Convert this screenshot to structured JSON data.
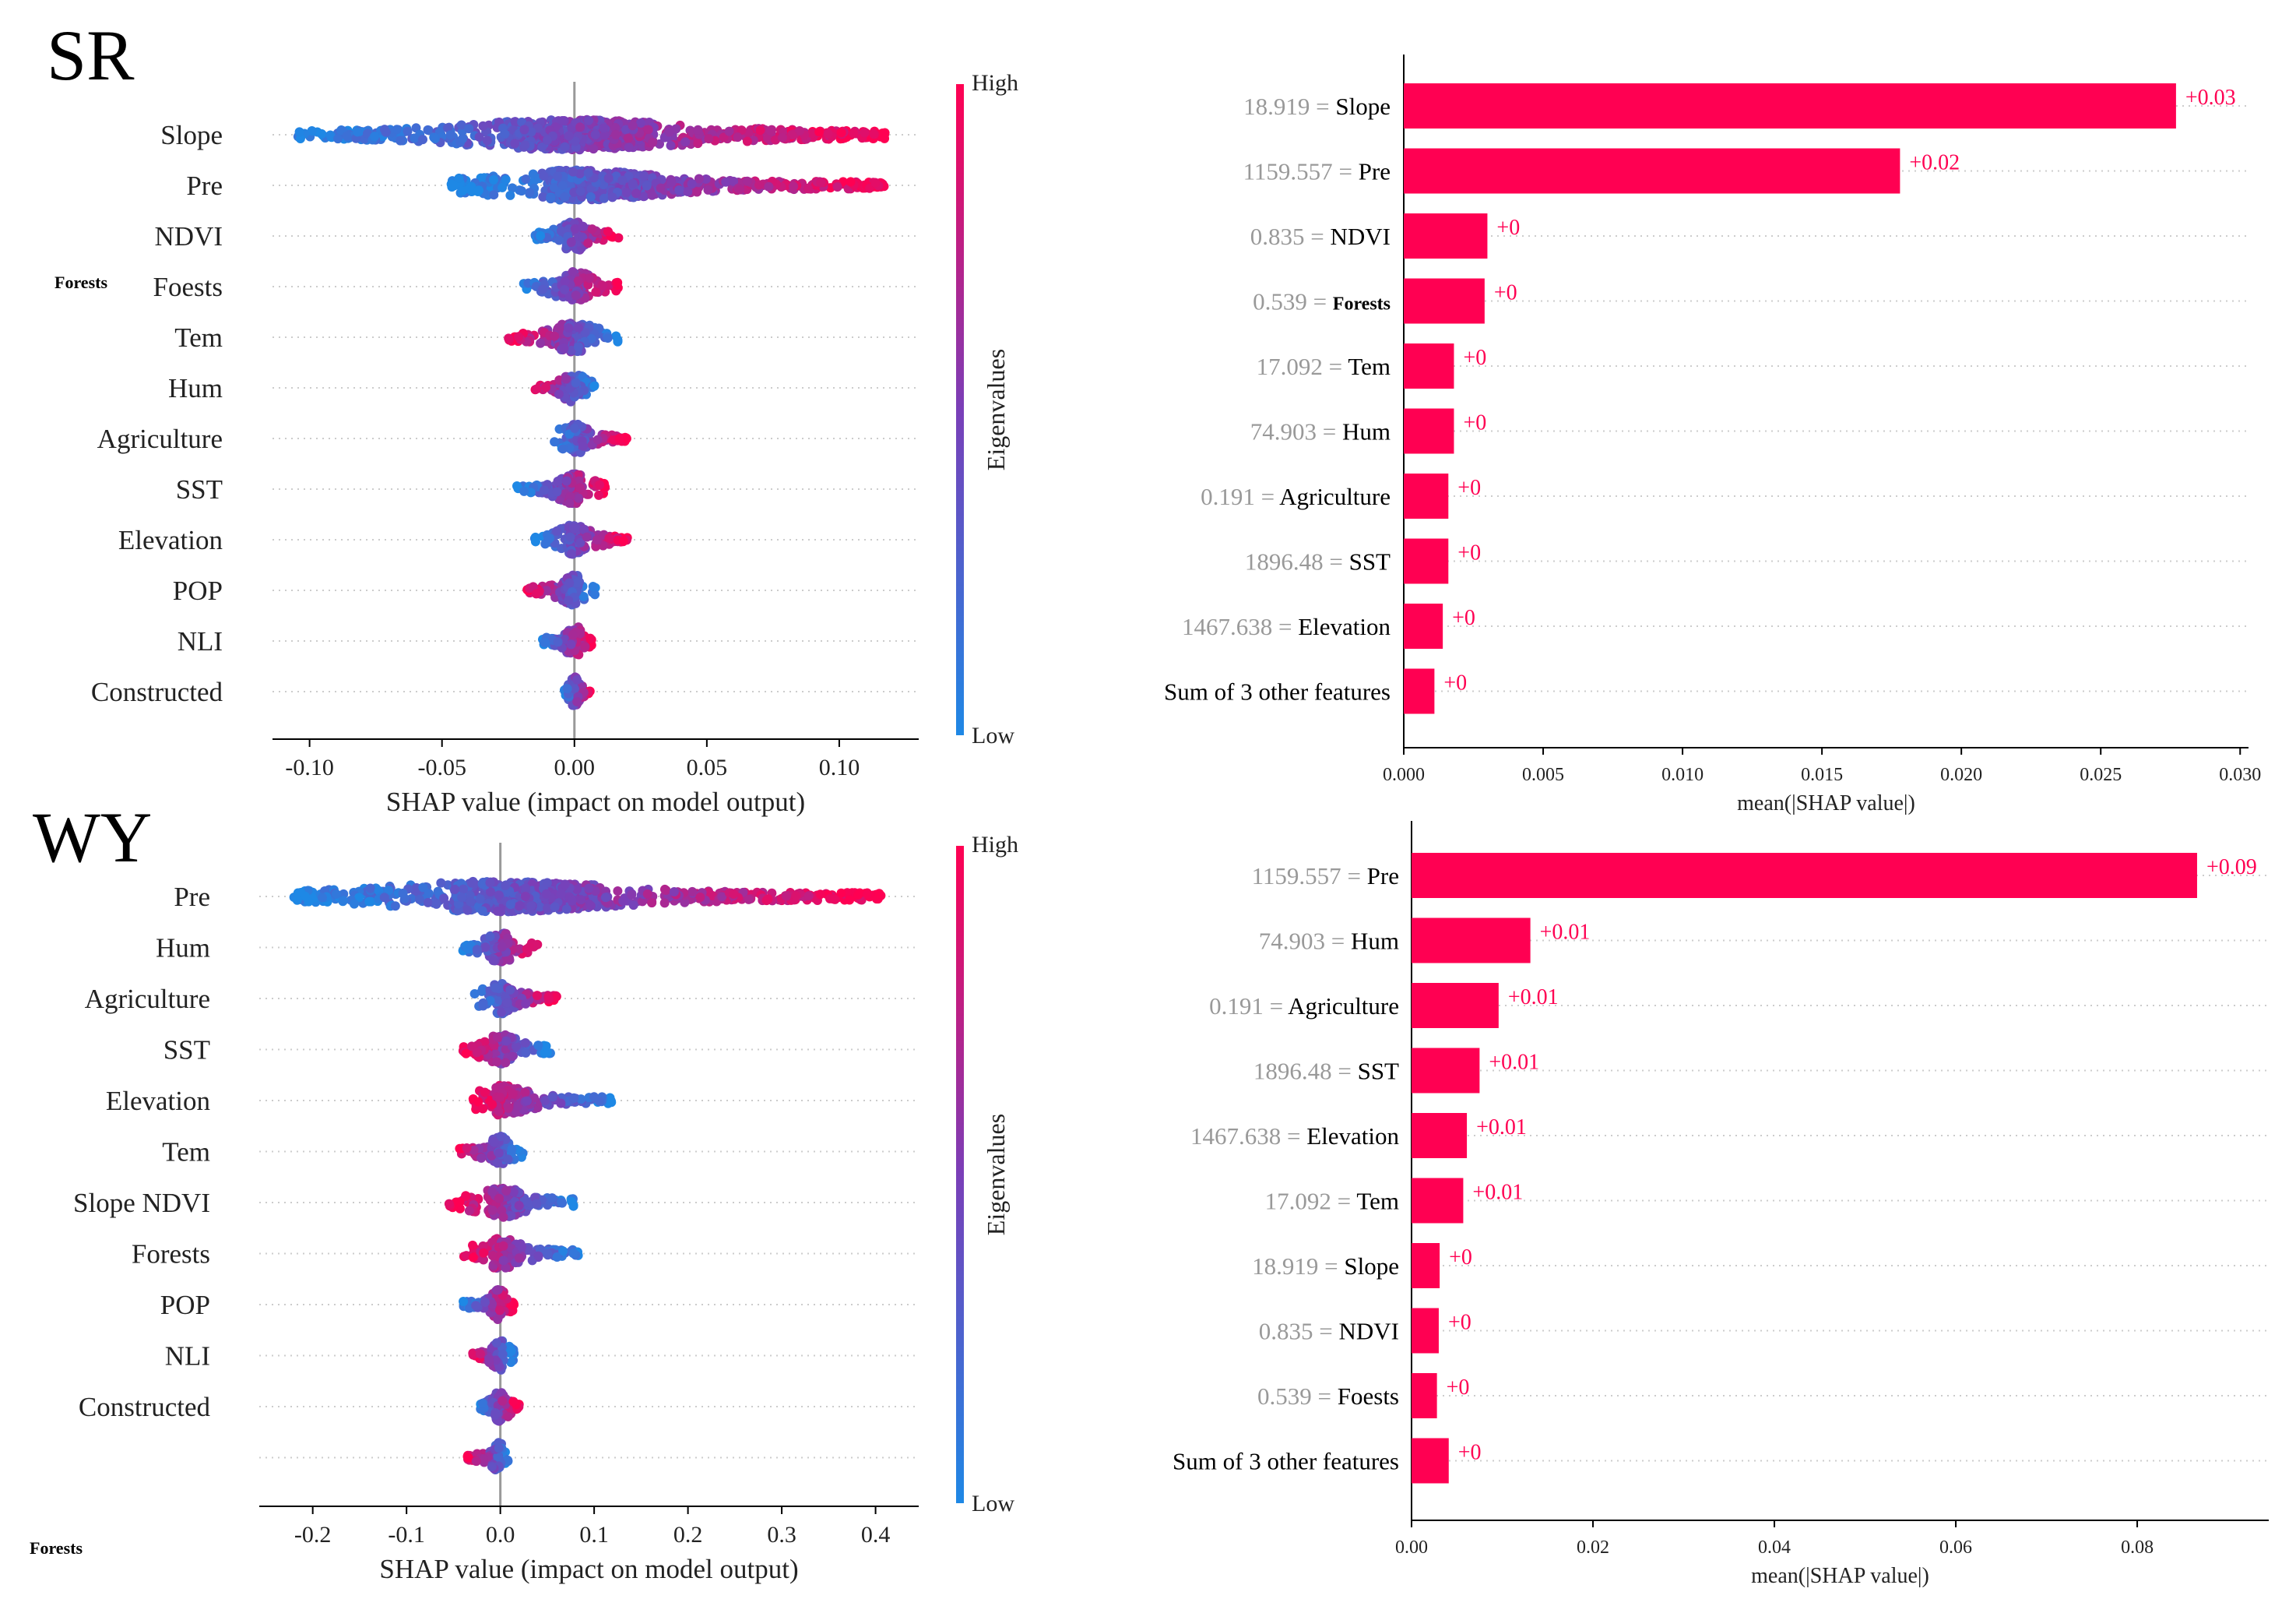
{
  "colors": {
    "high": "#ff0052",
    "low": "#1e88e5",
    "bar": "#ff0052",
    "bar_label": "#ff0052",
    "axis": "#000000",
    "zero_line": "#999999",
    "grid": "#cccccc",
    "feature_value": "#999999"
  },
  "sections": [
    "SR",
    "WY"
  ],
  "stray_labels": {
    "sr_forests": "Forests",
    "wy_forests": "Forests"
  },
  "chart_data": [
    {
      "id": "sr_beeswarm",
      "type": "scatter",
      "subtype": "shap-beeswarm",
      "features": [
        "Slope",
        "Pre",
        "NDVI",
        "Foests",
        "Tem",
        "Hum",
        "Agriculture",
        "SST",
        "Elevation",
        "POP",
        "NLI",
        "Constructed"
      ],
      "ranges": [
        [
          -0.105,
          0.118
        ],
        [
          -0.047,
          0.117
        ],
        [
          -0.015,
          0.017
        ],
        [
          -0.02,
          0.017
        ],
        [
          -0.025,
          0.017
        ],
        [
          -0.015,
          0.008
        ],
        [
          -0.008,
          0.02
        ],
        [
          -0.022,
          0.012
        ],
        [
          -0.015,
          0.02
        ],
        [
          -0.018,
          0.008
        ],
        [
          -0.012,
          0.007
        ],
        [
          -0.004,
          0.006
        ]
      ],
      "high_side": [
        "right",
        "right",
        "right",
        "right",
        "left",
        "left",
        "right",
        "right",
        "right",
        "left",
        "right",
        "right"
      ],
      "xlabel": "SHAP value (impact on model output)",
      "xticks": [
        -0.1,
        -0.05,
        0.0,
        0.05,
        0.1
      ],
      "xtick_labels": [
        "-0.10",
        "-0.05",
        "0.00",
        "0.05",
        "0.10"
      ],
      "xlim": [
        -0.114,
        0.13
      ],
      "colorbar": {
        "label": "Eigenvalues",
        "high": "High",
        "low": "Low"
      }
    },
    {
      "id": "sr_bar",
      "type": "bar",
      "subtype": "shap-waterfall-bar",
      "feature_values": [
        "18.919",
        "1159.557",
        "0.835",
        "0.539",
        "17.092",
        "74.903",
        "0.191",
        "1896.48",
        "1467.638",
        ""
      ],
      "features": [
        "Slope",
        "Pre",
        "NDVI",
        "Forests",
        "Tem",
        "Hum",
        "Agriculture",
        "SST",
        "Elevation",
        "Sum of 3 other features"
      ],
      "values": [
        0.0277,
        0.0178,
        0.003,
        0.0029,
        0.0018,
        0.0018,
        0.0016,
        0.0016,
        0.0014,
        0.0011
      ],
      "value_labels": [
        "+0.03",
        "+0.02",
        "+0",
        "+0",
        "+0",
        "+0",
        "+0",
        "+0",
        "+0",
        "+0"
      ],
      "xlabel": "mean(|SHAP value|)",
      "xticks": [
        0.0,
        0.005,
        0.01,
        0.015,
        0.02,
        0.025,
        0.03
      ],
      "xtick_labels": [
        "0.000",
        "0.005",
        "0.010",
        "0.015",
        "0.020",
        "0.025",
        "0.030"
      ],
      "xlim": [
        0,
        0.0303
      ]
    },
    {
      "id": "wy_beeswarm",
      "type": "scatter",
      "subtype": "shap-beeswarm",
      "features": [
        "Pre",
        "Hum",
        "Agriculture",
        "SST",
        "Elevation",
        "Tem",
        "Slope NDVI",
        "Forests",
        "POP",
        "NLI",
        "Constructed",
        ""
      ],
      "ranges": [
        [
          -0.22,
          0.41
        ],
        [
          -0.04,
          0.04
        ],
        [
          -0.03,
          0.06
        ],
        [
          -0.04,
          0.055
        ],
        [
          -0.03,
          0.12
        ],
        [
          -0.045,
          0.025
        ],
        [
          -0.055,
          0.08
        ],
        [
          -0.04,
          0.085
        ],
        [
          -0.04,
          0.015
        ],
        [
          -0.03,
          0.015
        ],
        [
          -0.025,
          0.02
        ],
        [
          -0.035,
          0.01
        ]
      ],
      "high_side": [
        "right",
        "right",
        "right",
        "left",
        "left",
        "left",
        "left",
        "left",
        "right",
        "left",
        "right",
        "left"
      ],
      "xlabel": "SHAP value (impact on model output)",
      "xticks": [
        -0.2,
        -0.1,
        0.0,
        0.1,
        0.2,
        0.3,
        0.4
      ],
      "xtick_labels": [
        "-0.2",
        "-0.1",
        "0.0",
        "0.1",
        "0.2",
        "0.3",
        "0.4"
      ],
      "xlim": [
        -0.257,
        0.446
      ],
      "colorbar": {
        "label": "Eigenvalues",
        "high": "High",
        "low": "Low"
      }
    },
    {
      "id": "wy_bar",
      "type": "bar",
      "subtype": "shap-waterfall-bar",
      "feature_values": [
        "1159.557",
        "74.903",
        "0.191",
        "1896.48",
        "1467.638",
        "17.092",
        "18.919",
        "0.835",
        "0.539",
        ""
      ],
      "features": [
        "Pre",
        "Hum",
        "Agriculture",
        "SST",
        "Elevation",
        "Tem",
        "Slope",
        "NDVI",
        "Foests",
        "Sum of 3 other features"
      ],
      "values": [
        0.0866,
        0.0131,
        0.0096,
        0.0075,
        0.0061,
        0.0057,
        0.0031,
        0.003,
        0.0028,
        0.0041
      ],
      "value_labels": [
        "+0.09",
        "+0.01",
        "+0.01",
        "+0.01",
        "+0.01",
        "+0.01",
        "+0",
        "+0",
        "+0",
        "+0"
      ],
      "xlabel": "mean(|SHAP value|)",
      "xticks": [
        0.0,
        0.02,
        0.04,
        0.06,
        0.08
      ],
      "xtick_labels": [
        "0.00",
        "0.02",
        "0.04",
        "0.06",
        "0.08"
      ],
      "xlim": [
        0,
        0.0945
      ]
    }
  ]
}
